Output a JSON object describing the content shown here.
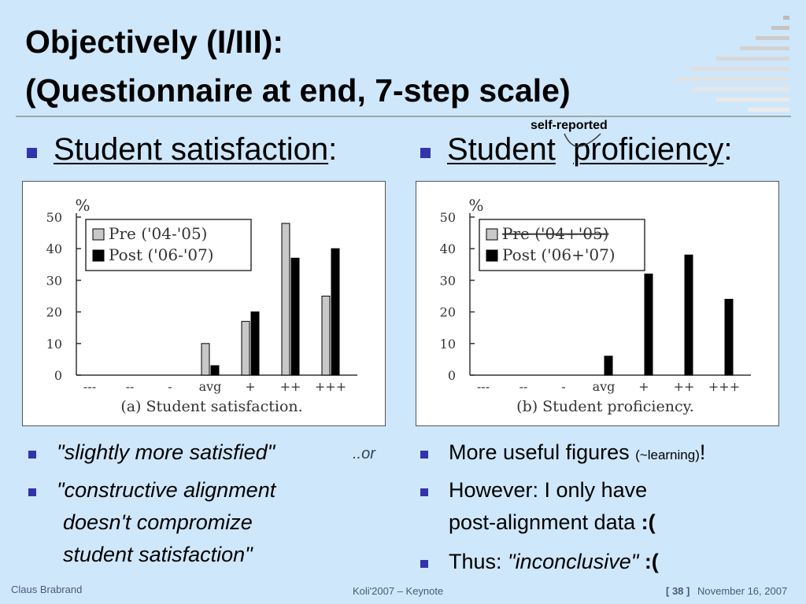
{
  "header": {
    "title": "Objectively (I/III):",
    "subtitle": "(Questionnaire at end, 7-step scale)"
  },
  "left": {
    "heading": "Student satisfaction",
    "heading_tail": ":",
    "bullets": [
      "\"slightly more satisfied\"",
      "\"constructive alignment",
      "doesn't compromize",
      "student satisfaction\""
    ],
    "aside": "..or"
  },
  "right": {
    "heading": "Student",
    "heading_2": "proficiency",
    "heading_tail": ":",
    "annotation": "self-reported",
    "bullet_1": "More useful figures",
    "bullet_1_small": "(~learning)",
    "bullet_1_tail": "!",
    "bullet_2": "However: I only have",
    "bullet_2b": "post-alignment data",
    "bullet_2_tail": ":(",
    "bullet_3": "Thus:",
    "bullet_3_quote": "\"inconclusive\"",
    "bullet_3_tail": ":("
  },
  "footer": {
    "author": "Claus Brabrand",
    "event": "Koli'2007 – Keynote",
    "page": "[ 38 ]",
    "date": "November 16, 2007"
  },
  "chart_data": [
    {
      "type": "bar",
      "title": "(a) Student satisfaction.",
      "y_label": "%",
      "categories": [
        "---",
        "--",
        "-",
        "avg",
        "+",
        "++",
        "+++"
      ],
      "series": [
        {
          "name": "Pre ('04-'05)",
          "color": "#c8c8c8",
          "values": [
            0,
            0,
            0,
            10,
            17,
            48,
            25
          ]
        },
        {
          "name": "Post ('06-'07)",
          "color": "#000000",
          "values": [
            0,
            0,
            0,
            3,
            20,
            37,
            40
          ]
        }
      ],
      "ylim": [
        0,
        50
      ],
      "yticks": [
        0,
        10,
        20,
        30,
        40,
        50
      ]
    },
    {
      "type": "bar",
      "title": "(b) Student proficiency.",
      "y_label": "%",
      "categories": [
        "---",
        "--",
        "-",
        "avg",
        "+",
        "++",
        "+++"
      ],
      "series": [
        {
          "name": "Pre ('04+'05)",
          "color": "#c8c8c8",
          "struck": true,
          "values": [
            null,
            null,
            null,
            null,
            null,
            null,
            null
          ]
        },
        {
          "name": "Post ('06+'07)",
          "color": "#000000",
          "values": [
            0,
            0,
            0,
            6,
            32,
            38,
            24
          ]
        }
      ],
      "ylim": [
        0,
        50
      ],
      "yticks": [
        0,
        10,
        20,
        30,
        40,
        50
      ]
    }
  ]
}
